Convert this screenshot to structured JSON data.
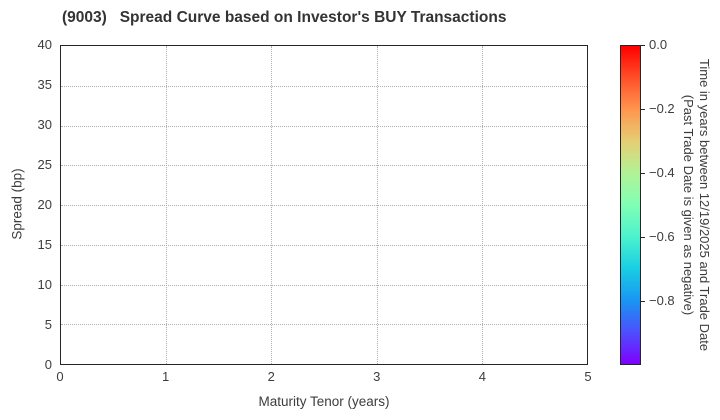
{
  "figure": {
    "background": "#ffffff"
  },
  "chart_data": {
    "type": "scatter",
    "title": "(9003)   Spread Curve based on Investor's BUY Transactions",
    "xlabel": "Maturity Tenor (years)",
    "ylabel": "Spread (bp)",
    "xlim": [
      0,
      5
    ],
    "ylim": [
      0,
      40
    ],
    "x_ticks": [
      0,
      1,
      2,
      3,
      4,
      5
    ],
    "y_ticks": [
      0,
      5,
      10,
      15,
      20,
      25,
      30,
      35,
      40
    ],
    "x_gridlines": [
      1,
      2,
      3,
      4
    ],
    "y_gridlines": [
      5,
      10,
      15,
      20,
      25,
      30,
      35
    ],
    "grid": true,
    "points": [],
    "colors": {
      "title_text": "#333333",
      "axis_text": "#3d3d3d",
      "spine": "#262626",
      "gridline": "#b0b0b0"
    },
    "colorbar": {
      "label_line1": "Time in years between 12/19/2025 and Trade Date",
      "label_line2": "(Past Trade Date is given as negative)",
      "tick_labels": [
        "0.0",
        "−0.2",
        "−0.4",
        "−0.6",
        "−0.8"
      ],
      "tick_values": [
        0.0,
        -0.2,
        -0.4,
        -0.6,
        -0.8
      ],
      "vmax": 0.0,
      "vmin": -1.0,
      "colormap": "rainbow",
      "gradient": [
        {
          "pos": 0.0,
          "color": "#ff0000"
        },
        {
          "pos": 0.1,
          "color": "#ff4f28"
        },
        {
          "pos": 0.2,
          "color": "#ff964f"
        },
        {
          "pos": 0.3,
          "color": "#e5ce74"
        },
        {
          "pos": 0.4,
          "color": "#b2f296"
        },
        {
          "pos": 0.5,
          "color": "#80ffb4"
        },
        {
          "pos": 0.6,
          "color": "#4cf2ce"
        },
        {
          "pos": 0.7,
          "color": "#19cee3"
        },
        {
          "pos": 0.8,
          "color": "#1996f2"
        },
        {
          "pos": 0.9,
          "color": "#4c4ffc"
        },
        {
          "pos": 1.0,
          "color": "#8000ff"
        }
      ]
    }
  }
}
